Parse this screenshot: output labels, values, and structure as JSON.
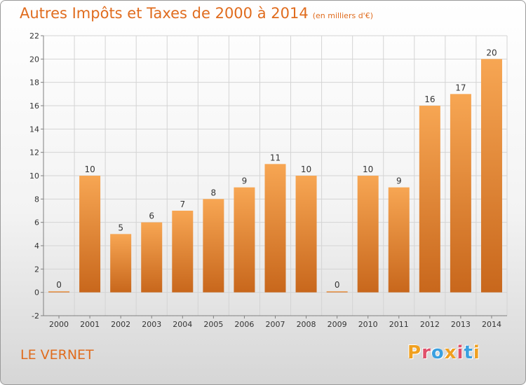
{
  "header": {
    "title": "Autres Impôts et Taxes de 2000 à 2014",
    "subtitle": "(en milliers d'€)"
  },
  "footer": {
    "place": "LE VERNET",
    "logo_text": "Proxiti",
    "logo_colors": [
      "#f0a020",
      "#e0506a",
      "#3aa0e0",
      "#f0a020",
      "#e0506a",
      "#3aa0e0",
      "#f0a020"
    ]
  },
  "colors": {
    "accent": "#e06c1e",
    "bar_top": "#f7a653",
    "bar_bottom": "#c8671c",
    "grid": "#d4d4d4",
    "axis": "#808080",
    "text": "#333333"
  },
  "chart_data": {
    "type": "bar",
    "categories": [
      "2000",
      "2001",
      "2002",
      "2003",
      "2004",
      "2005",
      "2006",
      "2007",
      "2008",
      "2009",
      "2010",
      "2011",
      "2012",
      "2013",
      "2014"
    ],
    "values": [
      0,
      10,
      5,
      6,
      7,
      8,
      9,
      11,
      10,
      0,
      10,
      9,
      16,
      17,
      20
    ],
    "data_labels": [
      "0",
      "10",
      "5",
      "6",
      "7",
      "8",
      "9",
      "11",
      "10",
      "0",
      "10",
      "9",
      "16",
      "17",
      "20"
    ],
    "yticks": [
      -2,
      0,
      2,
      4,
      6,
      8,
      10,
      12,
      14,
      16,
      18,
      20,
      22
    ],
    "ylim": [
      -2,
      22
    ],
    "grid": true,
    "legend": "none"
  }
}
